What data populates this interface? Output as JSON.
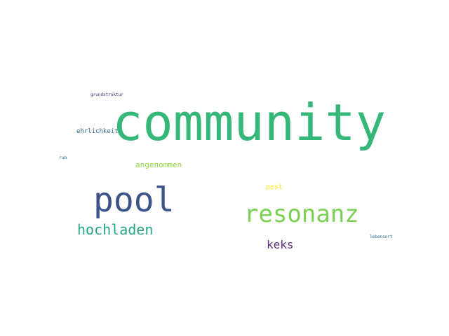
{
  "words": {
    "community": {
      "text": "community",
      "color": "#35b779"
    },
    "pool": {
      "text": "pool",
      "color": "#3b528b"
    },
    "resonanz": {
      "text": "resonanz",
      "color": "#7ad151"
    },
    "hochladen": {
      "text": "hochladen",
      "color": "#26a784"
    },
    "keks": {
      "text": "keks",
      "color": "#5b2f7d"
    },
    "angenommen": {
      "text": "angenommen",
      "color": "#8fd744"
    },
    "pest": {
      "text": "pest",
      "color": "#fde725"
    },
    "ehrlichkeit": {
      "text": "ehrlichkeit",
      "color": "#31688e"
    },
    "grundstruktur": {
      "text": "grundstruktur",
      "color": "#472a7a"
    },
    "rum": {
      "text": "rum",
      "color": "#2c728e"
    },
    "lebensort": {
      "text": "lebensort",
      "color": "#31688e"
    }
  }
}
